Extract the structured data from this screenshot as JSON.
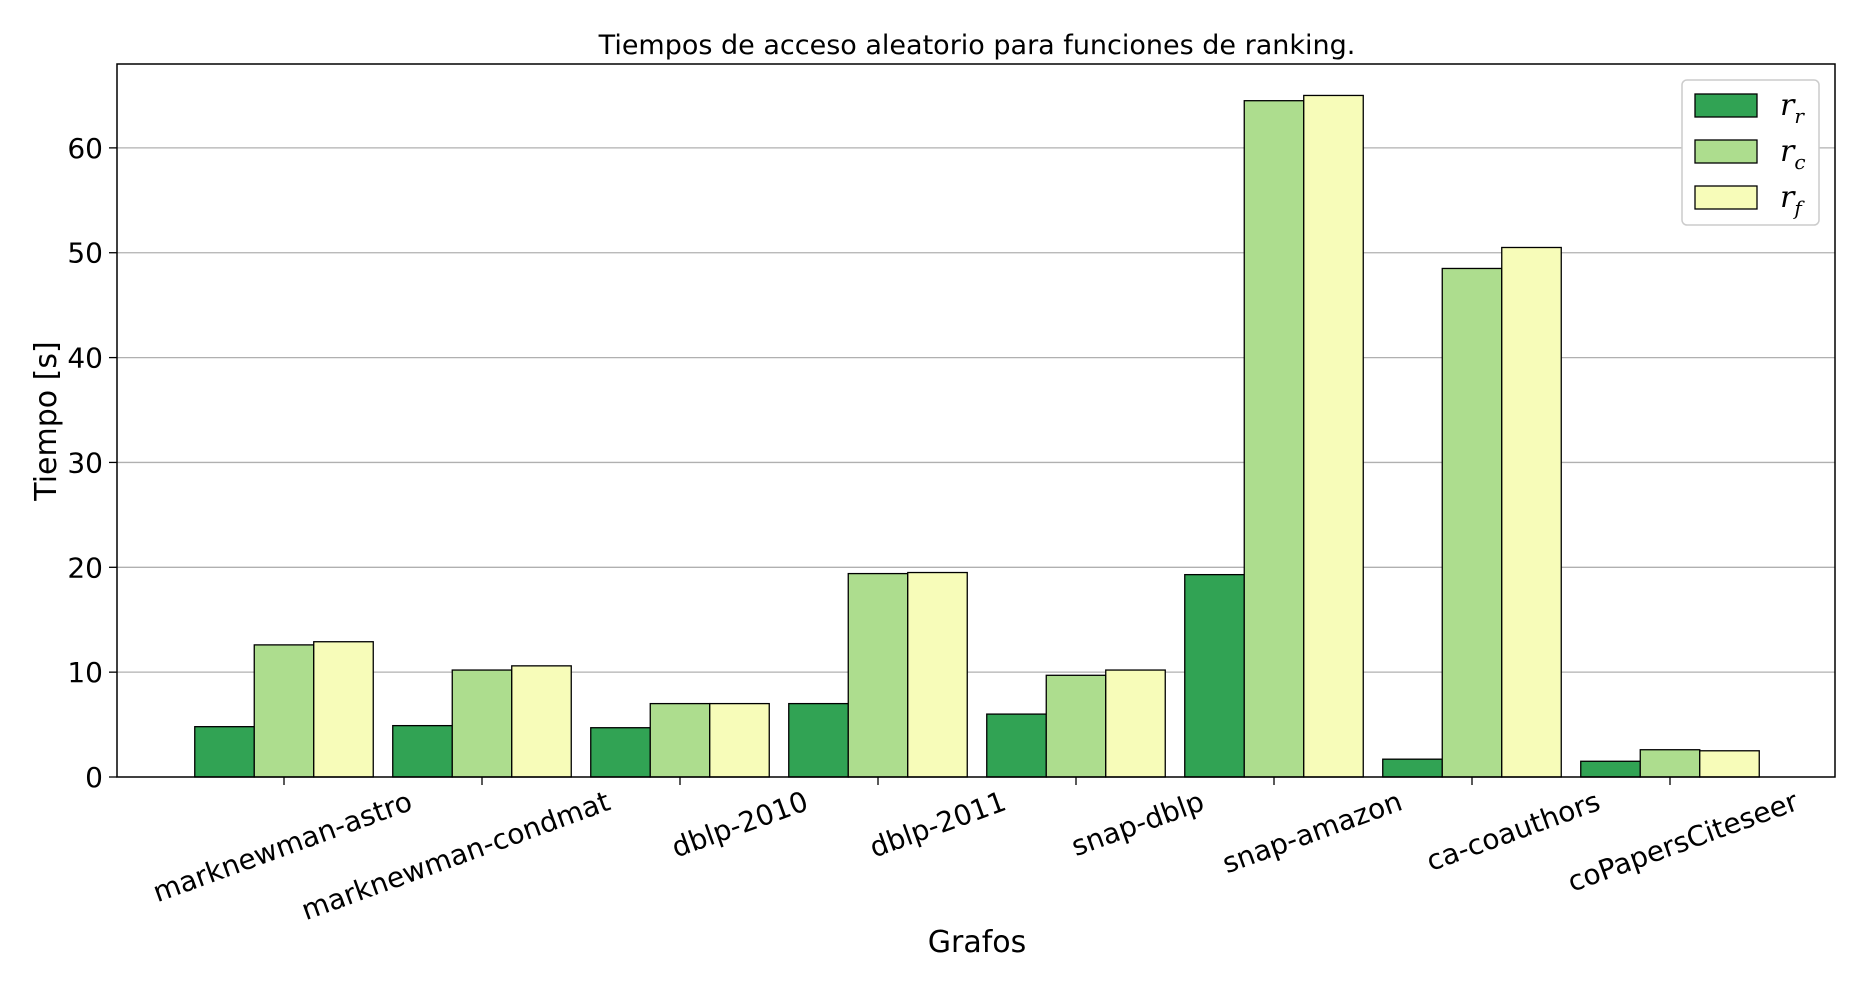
{
  "chart_data": {
    "type": "bar",
    "title": "Tiempos de acceso aleatorio para funciones de ranking.",
    "xlabel": "Grafos",
    "ylabel": "Tiempo [s]",
    "ylim": [
      0,
      68
    ],
    "yticks": [
      0,
      10,
      20,
      30,
      40,
      50,
      60
    ],
    "grid": "horizontal",
    "legend_position": "top-right",
    "categories": [
      "marknewman-astro",
      "marknewman-condmat",
      "dblp-2010",
      "dblp-2011",
      "snap-dblp",
      "snap-amazon",
      "ca-coauthors",
      "coPapersCiteseer"
    ],
    "series": [
      {
        "name": "r",
        "sub": "r",
        "color": "#31a354",
        "values": [
          4.8,
          4.9,
          4.7,
          7.0,
          6.0,
          19.3,
          1.7,
          1.5
        ]
      },
      {
        "name": "r",
        "sub": "c",
        "color": "#addd8e",
        "values": [
          12.6,
          10.2,
          7.0,
          19.4,
          9.7,
          64.5,
          48.5,
          2.6
        ]
      },
      {
        "name": "r",
        "sub": "f",
        "color": "#f7fcb9",
        "values": [
          12.9,
          10.6,
          7.0,
          19.5,
          10.2,
          65.0,
          50.5,
          2.5
        ]
      }
    ]
  }
}
